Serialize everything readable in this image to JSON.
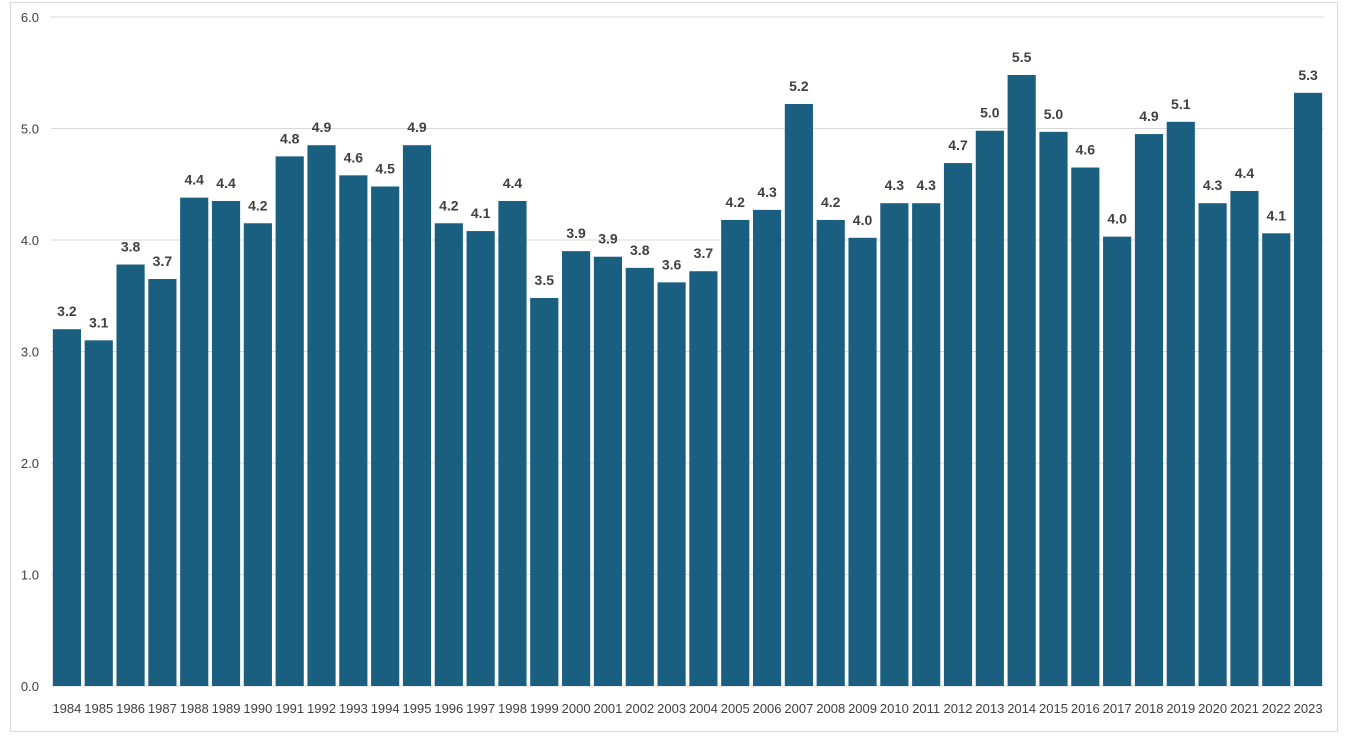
{
  "chart_data": {
    "type": "bar",
    "title": "",
    "xlabel": "",
    "ylabel": "",
    "ylim": [
      0,
      6
    ],
    "yticks": [
      "0.0",
      "1.0",
      "2.0",
      "3.0",
      "4.0",
      "5.0",
      "6.0"
    ],
    "grid": true,
    "legend": "none",
    "bar_color": "#1a5e80",
    "categories": [
      "1984",
      "1985",
      "1986",
      "1987",
      "1988",
      "1989",
      "1990",
      "1991",
      "1992",
      "1993",
      "1994",
      "1995",
      "1996",
      "1997",
      "1998",
      "1999",
      "2000",
      "2001",
      "2002",
      "2003",
      "2004",
      "2005",
      "2006",
      "2007",
      "2008",
      "2009",
      "2010",
      "2011",
      "2012",
      "2013",
      "2014",
      "2015",
      "2016",
      "2017",
      "2018",
      "2019",
      "2020",
      "2021",
      "2022",
      "2023"
    ],
    "values": [
      3.2,
      3.1,
      3.78,
      3.65,
      4.38,
      4.35,
      4.15,
      4.75,
      4.85,
      4.58,
      4.48,
      4.85,
      4.15,
      4.08,
      4.35,
      3.48,
      3.9,
      3.85,
      3.75,
      3.62,
      3.72,
      4.18,
      4.27,
      5.22,
      4.18,
      4.02,
      4.33,
      4.33,
      4.69,
      4.98,
      5.48,
      4.97,
      4.65,
      4.03,
      4.95,
      5.06,
      4.33,
      4.44,
      4.06,
      5.32
    ],
    "data_labels": [
      "3.2",
      "3.1",
      "3.8",
      "3.7",
      "4.4",
      "4.4",
      "4.2",
      "4.8",
      "4.9",
      "4.6",
      "4.5",
      "4.9",
      "4.2",
      "4.1",
      "4.4",
      "3.5",
      "3.9",
      "3.9",
      "3.8",
      "3.6",
      "3.7",
      "4.2",
      "4.3",
      "5.2",
      "4.2",
      "4.0",
      "4.3",
      "4.3",
      "4.7",
      "5.0",
      "5.5",
      "5.0",
      "4.6",
      "4.0",
      "4.9",
      "5.1",
      "4.3",
      "4.4",
      "4.1",
      "5.3"
    ]
  }
}
